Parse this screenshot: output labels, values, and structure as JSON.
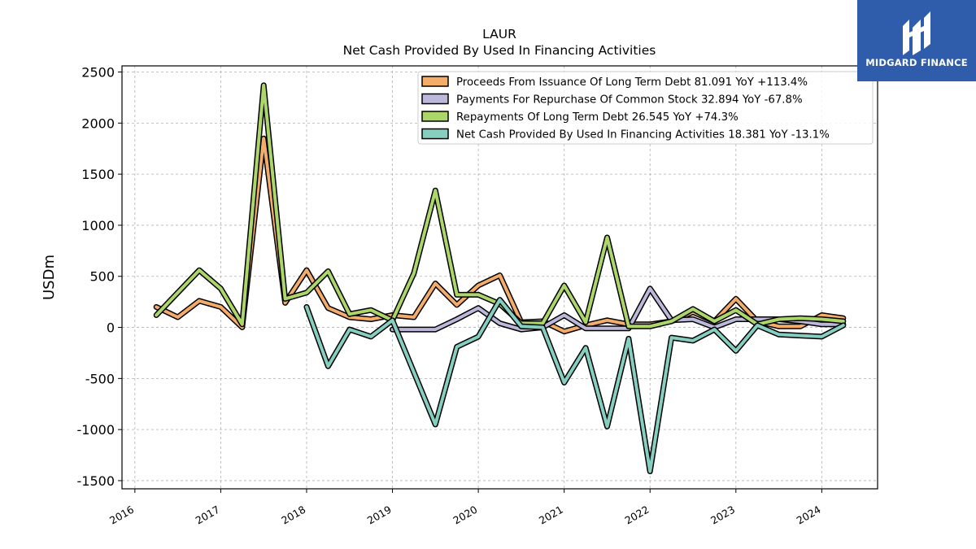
{
  "chart_data": {
    "type": "line",
    "title": "LAUR",
    "subtitle": "Net Cash Provided By Used In Financing Activities",
    "ylabel": "USDm",
    "xlabel": "",
    "ylim": [
      -1580,
      2560
    ],
    "xlim": [
      2015.85,
      2024.65
    ],
    "yticks": [
      -1500,
      -1000,
      -500,
      0,
      500,
      1000,
      1500,
      2000,
      2500
    ],
    "xticks": [
      "2016",
      "2017",
      "2018",
      "2019",
      "2020",
      "2021",
      "2022",
      "2023",
      "2024"
    ],
    "grid": true,
    "legend_position": "top-right",
    "series": [
      {
        "name": "Proceeds From Issuance Of Long Term Debt  81.091 YoY +113.4%",
        "color": "#f4ac6a",
        "x": [
          2016.25,
          2016.5,
          2016.75,
          2017.0,
          2017.25,
          2017.5,
          2017.75,
          2018.0,
          2018.25,
          2018.5,
          2018.75,
          2019.0,
          2019.25,
          2019.5,
          2019.75,
          2020.0,
          2020.25,
          2020.5,
          2020.75,
          2021.0,
          2021.25,
          2021.5,
          2021.75,
          2022.0,
          2022.25,
          2022.5,
          2022.75,
          2023.0,
          2023.25,
          2023.5,
          2023.75,
          2024.0,
          2024.25
        ],
        "y": [
          200,
          100,
          260,
          200,
          0,
          1850,
          240,
          560,
          190,
          100,
          80,
          120,
          100,
          430,
          220,
          410,
          510,
          50,
          60,
          -40,
          20,
          70,
          30,
          30,
          60,
          150,
          60,
          280,
          60,
          10,
          10,
          120,
          90
        ]
      },
      {
        "name": "Payments For Repurchase Of Common Stock  32.894 YoY -67.8%",
        "color": "#bcb8d9",
        "x": [
          2019.0,
          2019.25,
          2019.5,
          2019.75,
          2020.0,
          2020.25,
          2020.5,
          2020.75,
          2021.0,
          2021.25,
          2021.5,
          2021.75,
          2022.0,
          2022.25,
          2022.5,
          2022.75,
          2023.0,
          2023.25,
          2023.5,
          2023.75,
          2024.0,
          2024.25
        ],
        "y": [
          -20,
          -20,
          -20,
          80,
          190,
          40,
          -20,
          0,
          120,
          -10,
          -10,
          -10,
          380,
          70,
          80,
          0,
          80,
          80,
          80,
          60,
          30,
          30
        ]
      },
      {
        "name": "Repayments Of Long Term Debt  26.545 YoY +74.3%",
        "color": "#acd66a",
        "x": [
          2016.25,
          2016.5,
          2016.75,
          2017.0,
          2017.25,
          2017.5,
          2017.75,
          2018.0,
          2018.25,
          2018.5,
          2018.75,
          2019.0,
          2019.25,
          2019.5,
          2019.75,
          2020.0,
          2020.25,
          2020.5,
          2020.75,
          2021.0,
          2021.25,
          2021.5,
          2021.75,
          2022.0,
          2022.25,
          2022.5,
          2022.75,
          2023.0,
          2023.25,
          2023.5,
          2023.75,
          2024.0,
          2024.25
        ],
        "y": [
          120,
          340,
          560,
          380,
          30,
          2370,
          280,
          340,
          550,
          130,
          170,
          70,
          530,
          1340,
          320,
          320,
          230,
          40,
          40,
          410,
          50,
          880,
          10,
          10,
          60,
          180,
          60,
          170,
          30,
          80,
          90,
          80,
          60
        ]
      },
      {
        "name": "Net Cash Provided By Used In Financing Activities  18.381 YoY -13.1%",
        "color": "#86cfc0",
        "x": [
          2018.0,
          2018.25,
          2018.5,
          2018.75,
          2019.0,
          2019.25,
          2019.5,
          2019.75,
          2020.0,
          2020.25,
          2020.5,
          2020.75,
          2021.0,
          2021.25,
          2021.5,
          2021.75,
          2022.0,
          2022.25,
          2022.5,
          2022.75,
          2023.0,
          2023.25,
          2023.5,
          2023.75,
          2024.0,
          2024.25
        ],
        "y": [
          200,
          -380,
          -20,
          -90,
          70,
          -440,
          -950,
          -190,
          -90,
          270,
          10,
          0,
          -540,
          -200,
          -970,
          -110,
          -1410,
          -100,
          -130,
          -20,
          -230,
          20,
          -70,
          -80,
          -90,
          20
        ]
      }
    ]
  },
  "watermark": {
    "brand": "MIDGARD FINANCE",
    "icon": "midgard-logo-icon",
    "background": "#2f5cab"
  }
}
